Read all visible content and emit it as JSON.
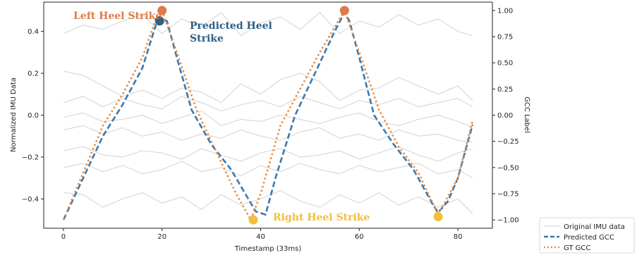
{
  "chart_data": {
    "type": "line",
    "xlabel": "Timestamp (33ms)",
    "ylabel_left": "Normalized IMU Data",
    "ylabel_right": "GCC Label",
    "xlim": [
      -4,
      87
    ],
    "ylim_left": [
      -0.54,
      0.54
    ],
    "ylim_right": [
      -1.08,
      1.08
    ],
    "x_ticks": [
      0,
      20,
      40,
      60,
      80
    ],
    "y_ticks_left": [
      -0.4,
      -0.2,
      0.0,
      0.2,
      0.4
    ],
    "y_ticks_right": [
      -1.0,
      -0.75,
      -0.5,
      -0.25,
      0.0,
      0.25,
      0.5,
      0.75,
      1.0
    ],
    "x_tick_labels": [
      "0",
      "20",
      "40",
      "60",
      "80"
    ],
    "y_tick_labels_left": [
      "−0.4",
      "−0.2",
      "0.0",
      "0.2",
      "0.4"
    ],
    "y_tick_labels_right": [
      "−1.00",
      "−0.75",
      "−0.50",
      "−0.25",
      "0.00",
      "0.25",
      "0.50",
      "0.75",
      "1.00"
    ],
    "imu_series": [
      {
        "x": [
          0,
          4,
          8,
          12,
          16,
          20,
          24,
          28,
          32,
          36,
          40,
          44,
          48,
          52,
          56,
          60,
          64,
          68,
          72,
          76,
          80,
          83
        ],
        "y": [
          0.39,
          0.43,
          0.41,
          0.45,
          0.48,
          0.39,
          0.46,
          0.42,
          0.49,
          0.38,
          0.44,
          0.47,
          0.41,
          0.49,
          0.39,
          0.45,
          0.42,
          0.48,
          0.43,
          0.46,
          0.4,
          0.38
        ]
      },
      {
        "x": [
          0,
          4,
          8,
          12,
          16,
          20,
          24,
          28,
          32,
          36,
          40,
          44,
          48,
          52,
          56,
          60,
          64,
          68,
          72,
          76,
          80,
          83
        ],
        "y": [
          0.21,
          0.19,
          0.14,
          0.09,
          0.12,
          0.08,
          0.13,
          0.11,
          0.06,
          0.15,
          0.1,
          0.17,
          0.2,
          0.16,
          0.07,
          0.12,
          0.13,
          0.18,
          0.14,
          0.1,
          0.14,
          0.07
        ]
      },
      {
        "x": [
          0,
          4,
          8,
          12,
          16,
          20,
          24,
          28,
          32,
          36,
          40,
          44,
          48,
          52,
          56,
          60,
          64,
          68,
          72,
          76,
          80,
          83
        ],
        "y": [
          0.06,
          0.09,
          0.04,
          0.08,
          0.05,
          0.03,
          0.09,
          0.06,
          0.02,
          0.05,
          0.07,
          0.04,
          0.09,
          0.06,
          0.03,
          0.07,
          0.05,
          0.08,
          0.04,
          0.06,
          0.08,
          0.04
        ]
      },
      {
        "x": [
          0,
          4,
          8,
          12,
          16,
          20,
          24,
          28,
          32,
          36,
          40,
          44,
          48,
          52,
          56,
          60,
          64,
          68,
          72,
          76,
          80,
          83
        ],
        "y": [
          -0.01,
          0.01,
          -0.03,
          -0.02,
          0.0,
          -0.04,
          -0.01,
          0.02,
          -0.05,
          -0.02,
          -0.03,
          0.0,
          -0.02,
          -0.04,
          -0.01,
          0.01,
          -0.03,
          -0.05,
          -0.02,
          0.0,
          -0.03,
          -0.06
        ]
      },
      {
        "x": [
          0,
          4,
          8,
          12,
          16,
          20,
          24,
          28,
          32,
          36,
          40,
          44,
          48,
          52,
          56,
          60,
          64,
          68,
          72,
          76,
          80,
          83
        ],
        "y": [
          -0.07,
          -0.05,
          -0.09,
          -0.06,
          -0.1,
          -0.08,
          -0.12,
          -0.09,
          -0.11,
          -0.07,
          -0.1,
          -0.12,
          -0.08,
          -0.06,
          -0.11,
          -0.09,
          -0.12,
          -0.07,
          -0.1,
          -0.09,
          -0.12,
          -0.13
        ]
      },
      {
        "x": [
          0,
          4,
          8,
          12,
          16,
          20,
          24,
          28,
          32,
          36,
          40,
          44,
          48,
          52,
          56,
          60,
          64,
          68,
          72,
          76,
          80,
          83
        ],
        "y": [
          -0.17,
          -0.15,
          -0.19,
          -0.2,
          -0.17,
          -0.18,
          -0.21,
          -0.16,
          -0.19,
          -0.22,
          -0.18,
          -0.16,
          -0.2,
          -0.19,
          -0.17,
          -0.21,
          -0.18,
          -0.15,
          -0.19,
          -0.22,
          -0.18,
          -0.16
        ]
      },
      {
        "x": [
          0,
          4,
          8,
          12,
          16,
          20,
          24,
          28,
          32,
          36,
          40,
          44,
          48,
          52,
          56,
          60,
          64,
          68,
          72,
          76,
          80,
          83
        ],
        "y": [
          -0.25,
          -0.23,
          -0.27,
          -0.24,
          -0.28,
          -0.26,
          -0.22,
          -0.27,
          -0.25,
          -0.29,
          -0.24,
          -0.27,
          -0.23,
          -0.26,
          -0.28,
          -0.24,
          -0.27,
          -0.25,
          -0.23,
          -0.28,
          -0.26,
          -0.3
        ]
      },
      {
        "x": [
          0,
          4,
          8,
          12,
          16,
          20,
          24,
          28,
          32,
          36,
          40,
          44,
          48,
          52,
          56,
          60,
          64,
          68,
          72,
          76,
          80,
          83
        ],
        "y": [
          -0.37,
          -0.38,
          -0.44,
          -0.4,
          -0.37,
          -0.42,
          -0.39,
          -0.45,
          -0.38,
          -0.43,
          -0.4,
          -0.36,
          -0.41,
          -0.44,
          -0.38,
          -0.42,
          -0.37,
          -0.43,
          -0.39,
          -0.44,
          -0.4,
          -0.47
        ]
      }
    ],
    "predicted_gcc": {
      "x": [
        0,
        4,
        8,
        12,
        16,
        19,
        21,
        23,
        26,
        30,
        34,
        37,
        39,
        41,
        43,
        47,
        51,
        55,
        57,
        58,
        60,
        63,
        67,
        71,
        75,
        76,
        78,
        80,
        83
      ],
      "y": [
        -1.0,
        -0.6,
        -0.2,
        0.1,
        0.45,
        0.9,
        0.9,
        0.55,
        0.05,
        -0.28,
        -0.52,
        -0.76,
        -0.92,
        -0.95,
        -0.6,
        0.0,
        0.4,
        0.8,
        0.98,
        0.9,
        0.55,
        0.0,
        -0.28,
        -0.52,
        -0.86,
        -0.93,
        -0.82,
        -0.6,
        -0.09
      ]
    },
    "gt_gcc": {
      "x": [
        0,
        4,
        8,
        12,
        16,
        19,
        20,
        23,
        27,
        31,
        35,
        38,
        40,
        44,
        48,
        52,
        57,
        60,
        64,
        68,
        72,
        76,
        80,
        83
      ],
      "y": [
        -1.0,
        -0.55,
        -0.1,
        0.2,
        0.55,
        0.95,
        1.0,
        0.6,
        0.05,
        -0.35,
        -0.75,
        -1.0,
        -0.75,
        -0.1,
        0.25,
        0.6,
        1.0,
        0.6,
        0.05,
        -0.3,
        -0.55,
        -0.95,
        -0.6,
        -0.05
      ]
    },
    "markers": [
      {
        "name": "left-heel-strike-marker",
        "x": 20,
        "y": 1.0,
        "color": "#de7b48"
      },
      {
        "name": "predicted-heel-strike-marker",
        "x": 19.5,
        "y": 0.9,
        "color": "#2d5f85"
      },
      {
        "name": "gt-peak-marker",
        "x": 57,
        "y": 1.0,
        "color": "#de7b48"
      },
      {
        "name": "right-heel-strike-marker-1",
        "x": 38.5,
        "y": -1.0,
        "color": "#f3bf3b"
      },
      {
        "name": "right-heel-strike-marker-2",
        "x": 76,
        "y": -0.97,
        "color": "#f3bf3b"
      }
    ],
    "annotations": {
      "left_heel_strike": "Left Heel Strike",
      "predicted_heel_strike_line1": "Predicted Heel",
      "predicted_heel_strike_line2": "Strike",
      "right_heel_strike": "Right Heel Strike"
    },
    "legend": {
      "placement": "bottom-right",
      "entries": [
        "Original IMU data",
        "Predicted GCC",
        "GT GCC"
      ]
    },
    "colors": {
      "imu": "#d6d6d6",
      "predicted": "#3a78b0",
      "gt": "#ee8a3c",
      "left_heel_text": "#de7b48",
      "predicted_heel_text": "#2d5f85",
      "right_heel_text": "#f3bf3b"
    },
    "grid": false
  }
}
